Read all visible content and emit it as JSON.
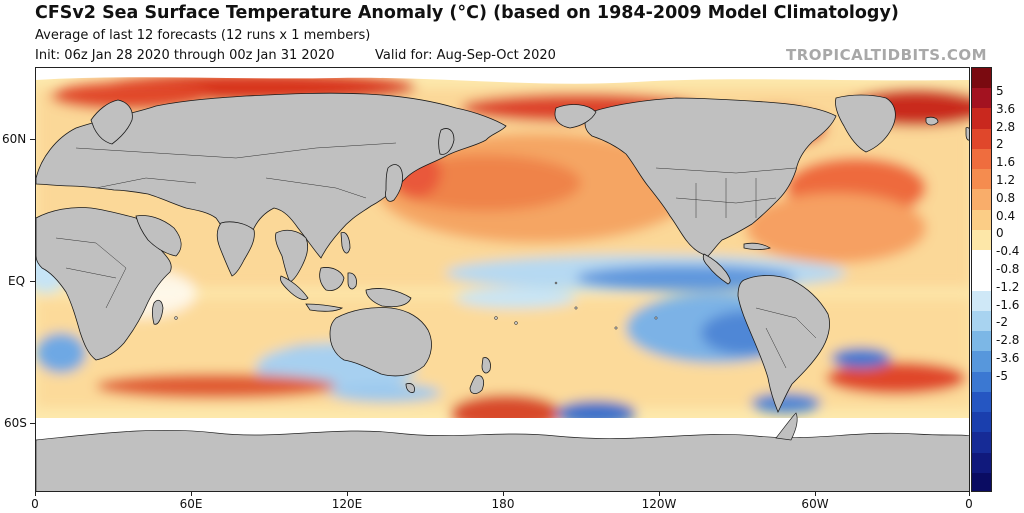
{
  "header": {
    "title": "CFSv2 Sea Surface Temperature Anomaly (°C) (based on 1984-2009 Model Climatology)",
    "subtitle": "Average of last 12 forecasts (12 runs x 1 members)",
    "init": "Init: 06z Jan 28 2020 through 00z Jan 31 2020",
    "valid": "Valid for: Aug-Sep-Oct 2020",
    "brand": "TROPICALTIDBITS.COM"
  },
  "map": {
    "lat_labels": [
      "60N",
      "EQ",
      "60S"
    ],
    "lon_labels": [
      "0",
      "60E",
      "120E",
      "180",
      "120W",
      "60W",
      "0"
    ],
    "colors": {
      "land": "#c0c0c0",
      "coast": "#111111",
      "warm_pale": "#fde49a",
      "warm_mid": "#f8a75c",
      "warm_strong": "#d83a22",
      "cool_pale": "#c6e4f6",
      "cool_mid": "#6ea8e4",
      "cool_strong": "#2a5fc9"
    }
  },
  "colorbar": {
    "labels": [
      "5",
      "3.6",
      "2.8",
      "2",
      "1.6",
      "1.2",
      "0.8",
      "0.4",
      "0",
      "-0.4",
      "-0.8",
      "-1.2",
      "-1.6",
      "-2",
      "-2.8",
      "-3.6",
      "-5"
    ],
    "colors": [
      "#7a0a10",
      "#a31220",
      "#c9281e",
      "#e0472b",
      "#ef6d3e",
      "#f58c4f",
      "#f9ad6a",
      "#fbcd86",
      "#fde7a8",
      "#ffffff",
      "#ffffff",
      "#cfe8f7",
      "#a8d3f0",
      "#7cb7e6",
      "#5797dc",
      "#3b78d2",
      "#2556c2",
      "#1a3fae",
      "#162b96",
      "#10197c",
      "#0a0c62"
    ]
  }
}
